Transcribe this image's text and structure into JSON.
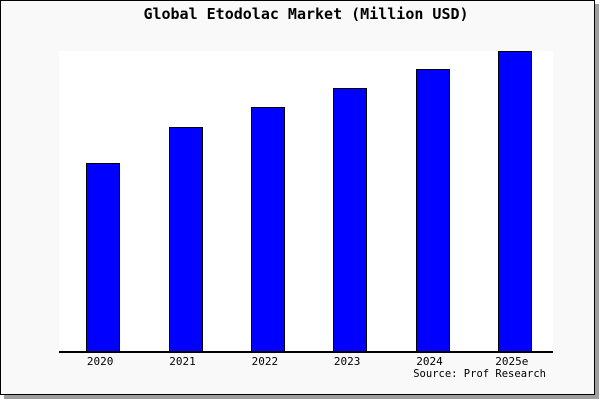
{
  "window": {
    "background": "#f9f9f9",
    "plot_background": "#ffffff",
    "border_color": "#000000",
    "shadow_color": "#9e9e9e"
  },
  "chart_data": {
    "type": "bar",
    "title": "Global Etodolac Market (Million USD)",
    "categories": [
      "2020",
      "2021",
      "2022",
      "2023",
      "2024",
      "2025e"
    ],
    "values": [
      62.7,
      74.8,
      81.3,
      87.8,
      94.0,
      100.0
    ],
    "value_note": "No y-axis or data labels are visible; values are relative bar heights estimated from pixels with 2025e = 100",
    "xlabel": "",
    "ylabel": "",
    "ylim": [
      0,
      100
    ],
    "grid": false,
    "legend": null,
    "bar_color": "#0000ff",
    "bar_edge_color": "#000000",
    "source": "Source: Prof Research"
  }
}
